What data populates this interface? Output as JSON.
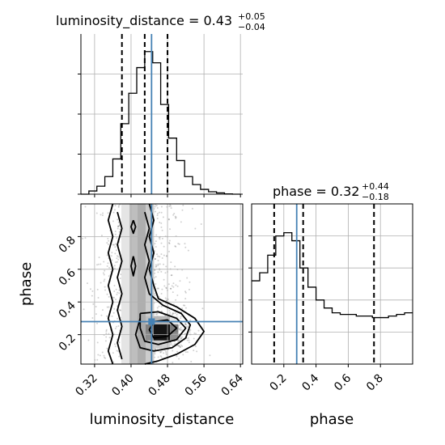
{
  "chart_data": {
    "type": "corner",
    "colors": {
      "truth": "#4682b4",
      "hist": "#000000",
      "grid": "#b0b0b0",
      "density": "#000000"
    },
    "params": [
      "luminosity_distance",
      "phase"
    ],
    "truths": {
      "luminosity_distance": 0.445,
      "phase": 0.28
    },
    "panels": [
      {
        "id": "luminosity_distance_marginal",
        "type": "step_histogram",
        "title_label": "luminosity_distance = 0.43",
        "title_plus": "+0.05",
        "title_minus": "−0.04",
        "xlim": [
          0.29,
          0.645
        ],
        "quantiles": [
          0.38,
          0.43,
          0.48
        ],
        "truth": 0.445,
        "bin_edges": [
          0.29,
          0.3075,
          0.325,
          0.3425,
          0.36,
          0.3775,
          0.395,
          0.4125,
          0.43,
          0.4475,
          0.465,
          0.4825,
          0.5,
          0.5175,
          0.535,
          0.5525,
          0.57,
          0.5875,
          0.605,
          0.6225,
          0.64
        ],
        "counts": [
          0,
          2,
          5,
          11,
          22,
          44,
          63,
          79,
          89,
          82,
          56,
          35,
          21,
          11,
          6,
          3,
          1.5,
          0.8,
          0.2,
          0
        ],
        "ylim": [
          0,
          100
        ]
      },
      {
        "id": "phase_marginal",
        "type": "step_histogram",
        "title_label": "phase = 0.32",
        "title_plus": "+0.44",
        "title_minus": "−0.18",
        "xlim": [
          0.0,
          1.0
        ],
        "quantiles": [
          0.14,
          0.32,
          0.76
        ],
        "truth": 0.28,
        "bin_edges": [
          0.0,
          0.05,
          0.1,
          0.15,
          0.2,
          0.25,
          0.3,
          0.35,
          0.4,
          0.45,
          0.5,
          0.55,
          0.6,
          0.65,
          0.7,
          0.75,
          0.8,
          0.85,
          0.9,
          0.95,
          1.0
        ],
        "counts": [
          52,
          57,
          68,
          80,
          82,
          77,
          60,
          48,
          40,
          35,
          32,
          31,
          31,
          30,
          30,
          29,
          29,
          30,
          31,
          32
        ],
        "ylim": [
          0,
          100
        ]
      },
      {
        "id": "joint_phase_vs_luminosity_distance",
        "type": "2d_density_contour",
        "xlabel": "luminosity_distance",
        "ylabel": "phase",
        "xlim": [
          0.29,
          0.645
        ],
        "ylim": [
          0.02,
          1.0
        ],
        "xticks": [
          "0.32",
          "0.40",
          "0.48",
          "0.56",
          "0.64"
        ],
        "xtick_values": [
          0.32,
          0.4,
          0.48,
          0.56,
          0.64
        ],
        "yticks": [
          "0.2",
          "0.4",
          "0.6",
          "0.8"
        ],
        "ytick_values": [
          0.2,
          0.4,
          0.6,
          0.8
        ],
        "density_peak": {
          "x": 0.47,
          "y": 0.22
        },
        "contours": [
          {
            "level": 1,
            "points": [
              [
                0.36,
                0.02
              ],
              [
                0.35,
                0.1
              ],
              [
                0.36,
                0.2
              ],
              [
                0.35,
                0.3
              ],
              [
                0.36,
                0.4
              ],
              [
                0.35,
                0.5
              ],
              [
                0.36,
                0.6
              ],
              [
                0.35,
                0.7
              ],
              [
                0.36,
                0.8
              ],
              [
                0.35,
                0.9
              ],
              [
                0.36,
                1.0
              ]
            ]
          },
          {
            "level": 1,
            "points": [
              [
                0.44,
                1.0
              ],
              [
                0.45,
                0.9
              ],
              [
                0.44,
                0.8
              ],
              [
                0.45,
                0.7
              ],
              [
                0.44,
                0.6
              ],
              [
                0.45,
                0.5
              ],
              [
                0.46,
                0.42
              ],
              [
                0.5,
                0.37
              ],
              [
                0.54,
                0.3
              ],
              [
                0.56,
                0.22
              ],
              [
                0.54,
                0.14
              ],
              [
                0.5,
                0.08
              ],
              [
                0.46,
                0.04
              ],
              [
                0.43,
                0.02
              ]
            ]
          },
          {
            "level": 2,
            "points": [
              [
                0.38,
                0.05
              ],
              [
                0.37,
                0.15
              ],
              [
                0.38,
                0.25
              ],
              [
                0.37,
                0.35
              ],
              [
                0.38,
                0.45
              ],
              [
                0.37,
                0.55
              ],
              [
                0.38,
                0.65
              ],
              [
                0.37,
                0.75
              ],
              [
                0.38,
                0.85
              ],
              [
                0.37,
                0.95
              ]
            ]
          },
          {
            "level": 2,
            "points": [
              [
                0.43,
                0.95
              ],
              [
                0.44,
                0.85
              ],
              [
                0.43,
                0.75
              ],
              [
                0.44,
                0.65
              ],
              [
                0.43,
                0.55
              ],
              [
                0.44,
                0.45
              ],
              [
                0.47,
                0.38
              ],
              [
                0.51,
                0.33
              ],
              [
                0.53,
                0.26
              ],
              [
                0.52,
                0.18
              ],
              [
                0.49,
                0.12
              ],
              [
                0.45,
                0.1
              ],
              [
                0.42,
                0.12
              ],
              [
                0.41,
                0.2
              ],
              [
                0.42,
                0.3
              ]
            ]
          },
          {
            "level": 3,
            "points": [
              [
                0.42,
                0.33
              ],
              [
                0.46,
                0.34
              ],
              [
                0.5,
                0.3
              ],
              [
                0.52,
                0.24
              ],
              [
                0.5,
                0.17
              ],
              [
                0.46,
                0.14
              ],
              [
                0.43,
                0.16
              ],
              [
                0.42,
                0.24
              ],
              [
                0.42,
                0.33
              ]
            ]
          },
          {
            "level": 4,
            "points": [
              [
                0.45,
                0.28
              ],
              [
                0.48,
                0.29
              ],
              [
                0.5,
                0.24
              ],
              [
                0.48,
                0.19
              ],
              [
                0.45,
                0.18
              ],
              [
                0.44,
                0.23
              ],
              [
                0.45,
                0.28
              ]
            ]
          },
          {
            "level": 4,
            "points": [
              [
                0.405,
                0.9
              ],
              [
                0.41,
                0.86
              ],
              [
                0.405,
                0.82
              ],
              [
                0.4,
                0.86
              ],
              [
                0.405,
                0.9
              ]
            ]
          },
          {
            "level": 4,
            "points": [
              [
                0.405,
                0.68
              ],
              [
                0.41,
                0.62
              ],
              [
                0.405,
                0.56
              ],
              [
                0.4,
                0.62
              ],
              [
                0.405,
                0.68
              ]
            ]
          }
        ]
      }
    ]
  }
}
